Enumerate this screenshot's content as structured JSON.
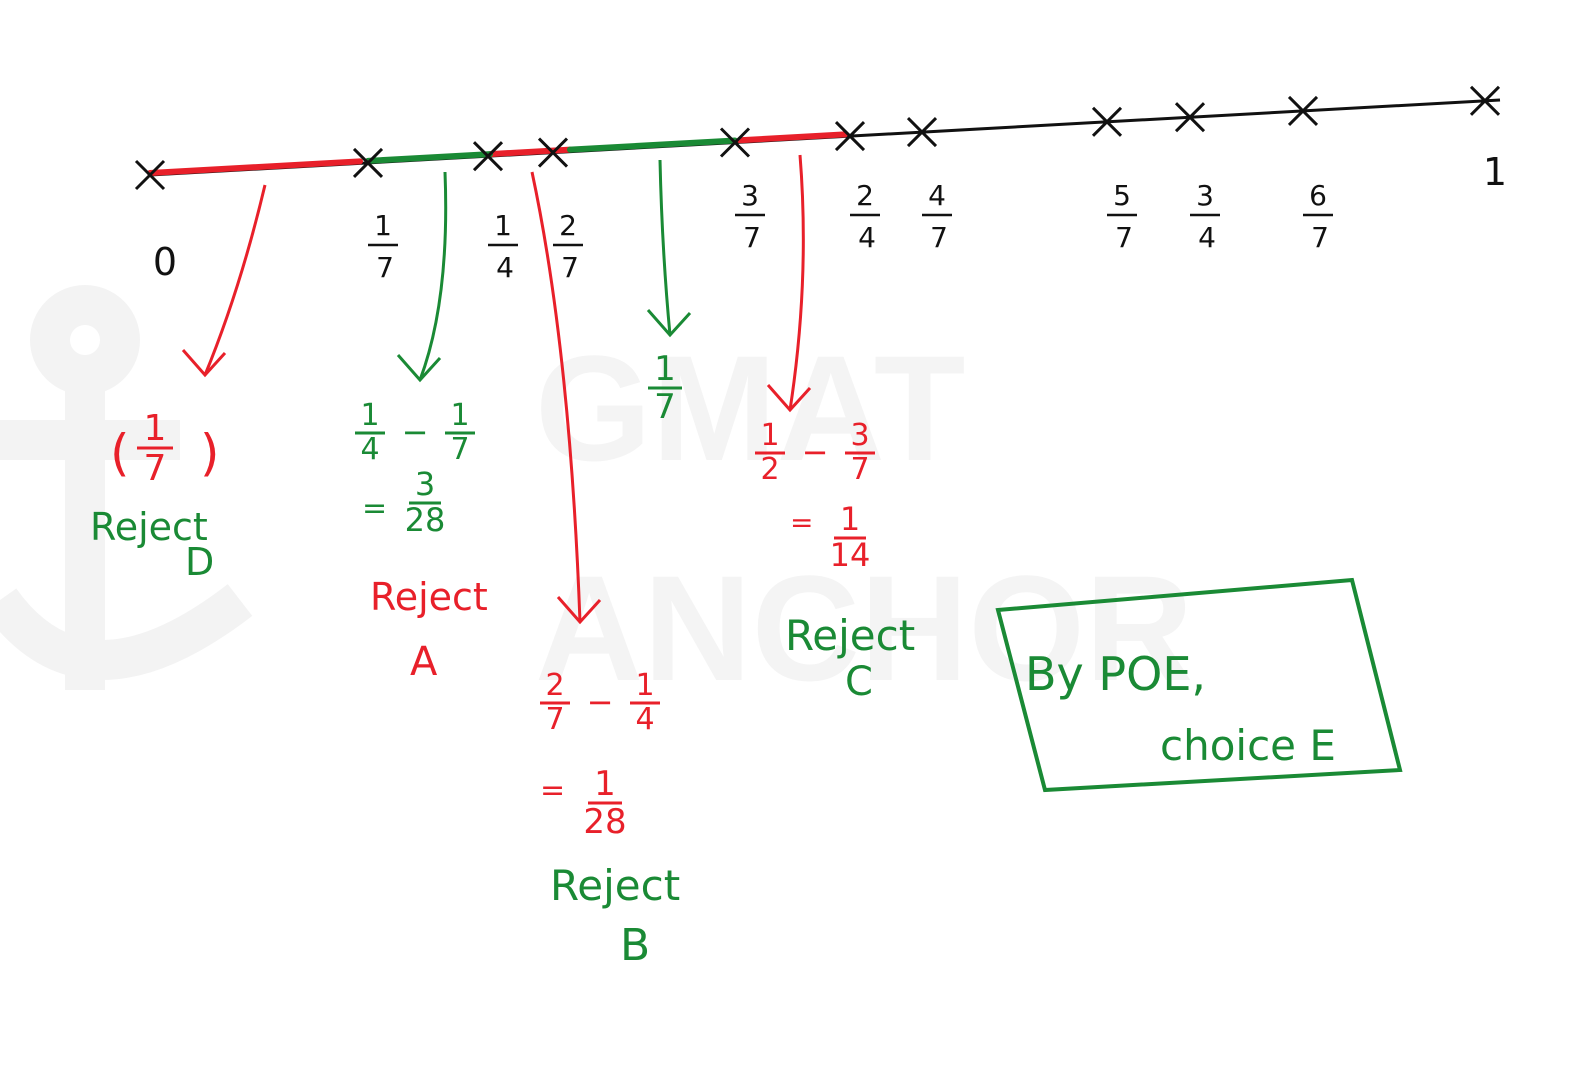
{
  "colors": {
    "line": "#111111",
    "red": "#e8202a",
    "green": "#1a8a35",
    "watermark": "#f2f2f2"
  },
  "watermark": {
    "line1": "GMAT",
    "line2": "ANCHOR"
  },
  "number_line": {
    "ticks": [
      {
        "num": "0",
        "den": ""
      },
      {
        "num": "1",
        "den": "7"
      },
      {
        "num": "1",
        "den": "4"
      },
      {
        "num": "2",
        "den": "7"
      },
      {
        "num": "3",
        "den": "7"
      },
      {
        "num": "2",
        "den": "4"
      },
      {
        "num": "4",
        "den": "7"
      },
      {
        "num": "5",
        "den": "7"
      },
      {
        "num": "3",
        "den": "4"
      },
      {
        "num": "6",
        "den": "7"
      },
      {
        "num": "1",
        "den": ""
      }
    ]
  },
  "annotations": {
    "d": {
      "value": {
        "num": "1",
        "den": "7"
      },
      "paren": [
        "(",
        ")"
      ],
      "verdict": "Reject",
      "choice": "D"
    },
    "a": {
      "calc": {
        "n1": "1",
        "d1": "4",
        "op": "−",
        "n2": "1",
        "d2": "7"
      },
      "eq": "=",
      "result": {
        "num": "3",
        "den": "28"
      },
      "verdict": "Reject",
      "choice": "A"
    },
    "b": {
      "calc": {
        "n1": "2",
        "d1": "7",
        "op": "−",
        "n2": "1",
        "d2": "4"
      },
      "eq": "=",
      "result": {
        "num": "1",
        "den": "28"
      },
      "verdict": "Reject",
      "choice": "B"
    },
    "g": {
      "value": {
        "num": "1",
        "den": "7"
      }
    },
    "c": {
      "calc": {
        "n1": "1",
        "d1": "2",
        "op": "−",
        "n2": "3",
        "d2": "7"
      },
      "eq": "=",
      "result": {
        "num": "1",
        "den": "14"
      },
      "verdict": "Reject",
      "choice": "C"
    }
  },
  "conclusion": {
    "line1": "By POE,",
    "line2": "choice E"
  }
}
